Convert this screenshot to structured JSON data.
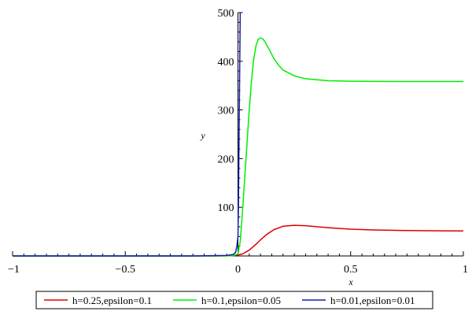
{
  "chart_data": {
    "type": "line",
    "title": "",
    "xlabel": "x",
    "ylabel": "y",
    "xlim": [
      -1,
      1
    ],
    "ylim": [
      0,
      500
    ],
    "x_ticks": [
      {
        "value": -1,
        "label": "−1"
      },
      {
        "value": -0.5,
        "label": "−0.5"
      },
      {
        "value": 0,
        "label": "0"
      },
      {
        "value": 0.5,
        "label": "0.5"
      },
      {
        "value": 1,
        "label": "1"
      }
    ],
    "y_ticks": [
      {
        "value": 100,
        "label": "100"
      },
      {
        "value": 200,
        "label": "200"
      },
      {
        "value": 300,
        "label": "300"
      },
      {
        "value": 400,
        "label": "400"
      },
      {
        "value": 500,
        "label": "500"
      }
    ],
    "grid": false,
    "legend_position": "bottom",
    "series": [
      {
        "name": "h=0.25,epsilon=0.1",
        "color": "#e00000",
        "points": [
          [
            -1,
            0
          ],
          [
            -0.1,
            0
          ],
          [
            -0.05,
            0.3
          ],
          [
            -0.02,
            0.8
          ],
          [
            0,
            2
          ],
          [
            0.02,
            4
          ],
          [
            0.05,
            12
          ],
          [
            0.08,
            24
          ],
          [
            0.1,
            33
          ],
          [
            0.13,
            45
          ],
          [
            0.16,
            54
          ],
          [
            0.2,
            61
          ],
          [
            0.25,
            63
          ],
          [
            0.3,
            62
          ],
          [
            0.4,
            58
          ],
          [
            0.5,
            55
          ],
          [
            0.6,
            53.5
          ],
          [
            0.7,
            52.5
          ],
          [
            0.8,
            52
          ],
          [
            0.9,
            51.5
          ],
          [
            1,
            51.3
          ]
        ]
      },
      {
        "name": "h=0.1,epsilon=0.05",
        "color": "#00ee00",
        "points": [
          [
            -1,
            0
          ],
          [
            -0.05,
            0
          ],
          [
            -0.02,
            1
          ],
          [
            0,
            4
          ],
          [
            0.01,
            30
          ],
          [
            0.02,
            90
          ],
          [
            0.03,
            160
          ],
          [
            0.04,
            230
          ],
          [
            0.05,
            300
          ],
          [
            0.06,
            360
          ],
          [
            0.07,
            405
          ],
          [
            0.08,
            432
          ],
          [
            0.09,
            445
          ],
          [
            0.1,
            448
          ],
          [
            0.11,
            446
          ],
          [
            0.12,
            440
          ],
          [
            0.14,
            423
          ],
          [
            0.16,
            405
          ],
          [
            0.18,
            392
          ],
          [
            0.2,
            382
          ],
          [
            0.25,
            370
          ],
          [
            0.3,
            364
          ],
          [
            0.4,
            360
          ],
          [
            0.5,
            359
          ],
          [
            0.7,
            358.5
          ],
          [
            1,
            358.5
          ]
        ]
      },
      {
        "name": "h=0.01,epsilon=0.01",
        "color": "#1a1aaa",
        "points": [
          [
            -1,
            0
          ],
          [
            -0.2,
            0
          ],
          [
            -0.05,
            1
          ],
          [
            -0.02,
            3
          ],
          [
            -0.01,
            8
          ],
          [
            -0.005,
            20
          ],
          [
            0,
            40
          ],
          [
            0.002,
            100
          ],
          [
            0.004,
            200
          ],
          [
            0.006,
            300
          ],
          [
            0.008,
            400
          ],
          [
            0.01,
            500
          ]
        ]
      }
    ]
  }
}
